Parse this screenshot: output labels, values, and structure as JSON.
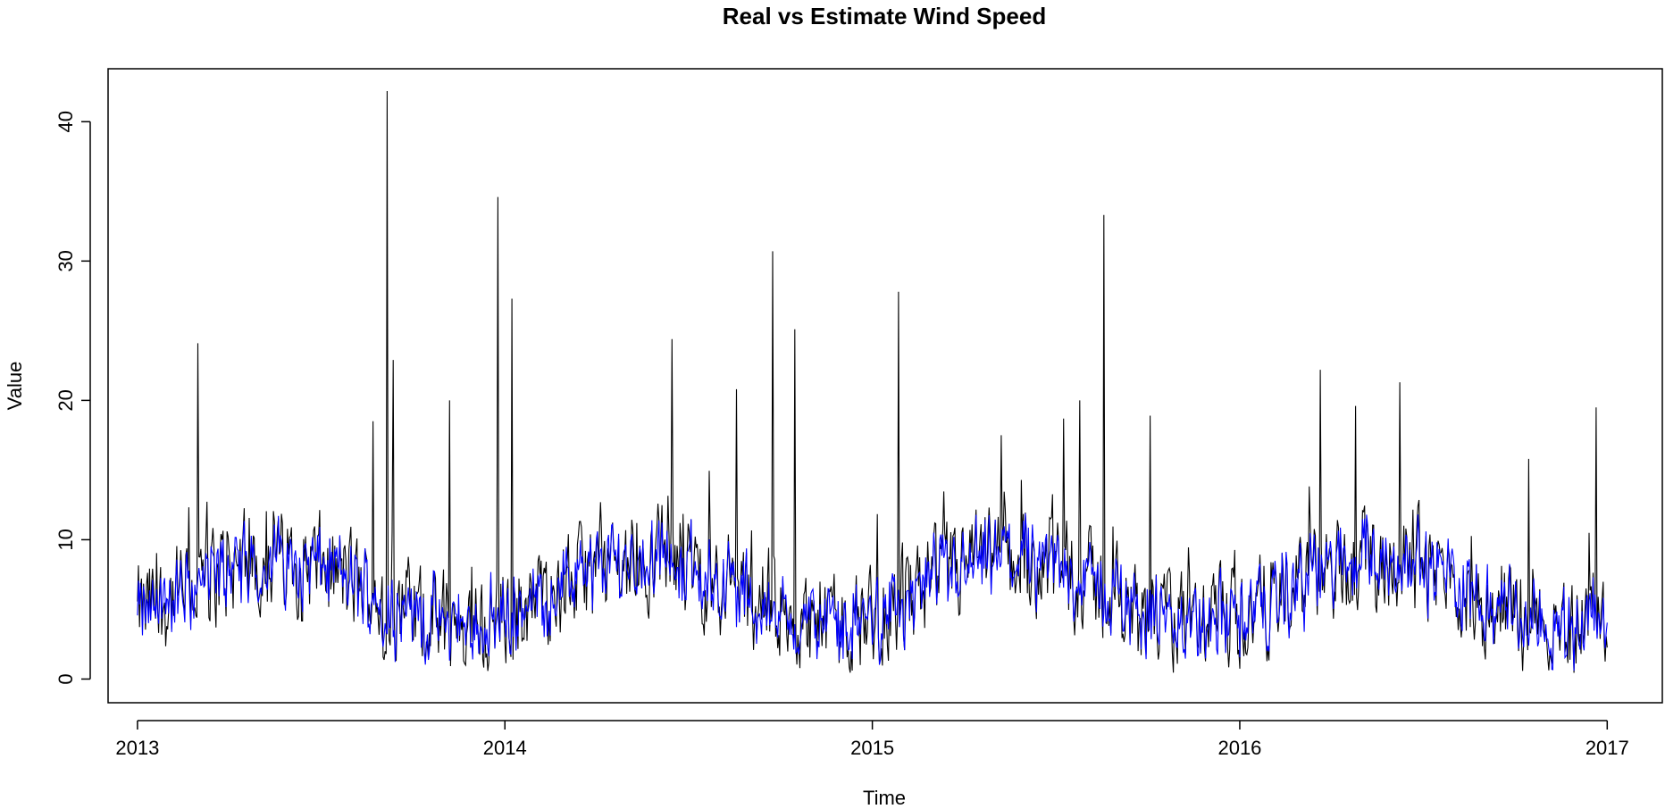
{
  "chart_data": {
    "type": "line",
    "title": "Real vs Estimate Wind Speed",
    "xlabel": "Time",
    "ylabel": "Value",
    "xlim": [
      2012.92,
      2017.15
    ],
    "ylim": [
      -1.7,
      43.8
    ],
    "x_ticks": [
      2013,
      2014,
      2015,
      2016,
      2017
    ],
    "x_tick_labels": [
      "2013",
      "2014",
      "2015",
      "2016",
      "2017"
    ],
    "y_ticks": [
      0,
      10,
      20,
      30,
      40
    ],
    "y_tick_labels": [
      "0",
      "10",
      "20",
      "30",
      "40"
    ],
    "grid": false,
    "legend": "none",
    "series_colors": [
      "#000000",
      "#0000ff"
    ],
    "x_start": 2013.0,
    "x_end": 2017.0,
    "peaks": [
      {
        "x": 2013.165,
        "y": 24.1
      },
      {
        "x": 2013.68,
        "y": 42.2
      },
      {
        "x": 2013.695,
        "y": 22.9
      },
      {
        "x": 2013.64,
        "y": 18.5
      },
      {
        "x": 2013.85,
        "y": 20.0
      },
      {
        "x": 2013.98,
        "y": 34.6
      },
      {
        "x": 2014.02,
        "y": 27.3
      },
      {
        "x": 2014.455,
        "y": 24.4
      },
      {
        "x": 2014.63,
        "y": 20.8
      },
      {
        "x": 2014.73,
        "y": 30.7
      },
      {
        "x": 2014.79,
        "y": 25.1
      },
      {
        "x": 2015.07,
        "y": 27.8
      },
      {
        "x": 2015.35,
        "y": 17.5
      },
      {
        "x": 2015.52,
        "y": 18.7
      },
      {
        "x": 2015.565,
        "y": 20.0
      },
      {
        "x": 2015.63,
        "y": 33.3
      },
      {
        "x": 2015.755,
        "y": 18.9
      },
      {
        "x": 2016.22,
        "y": 22.2
      },
      {
        "x": 2016.315,
        "y": 19.6
      },
      {
        "x": 2016.435,
        "y": 21.3
      },
      {
        "x": 2016.785,
        "y": 15.8
      },
      {
        "x": 2016.97,
        "y": 19.5
      }
    ]
  }
}
